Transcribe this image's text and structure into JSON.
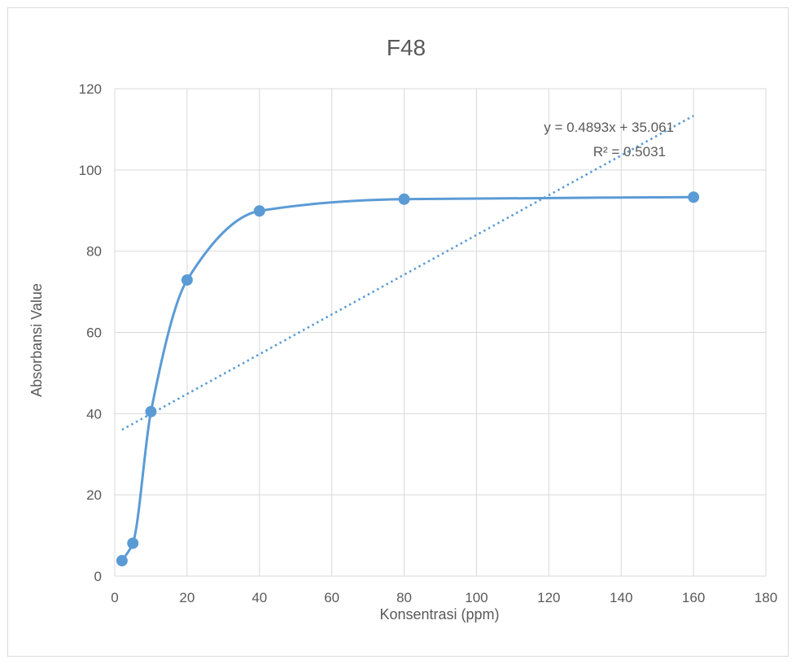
{
  "chart_data": {
    "type": "scatter",
    "title": "F48",
    "xlabel": "Konsentrasi (ppm)",
    "ylabel": "Absorbansi Value",
    "xlim": [
      0,
      180
    ],
    "ylim": [
      0,
      120
    ],
    "x_ticks": [
      "0",
      "20",
      "40",
      "60",
      "80",
      "100",
      "120",
      "140",
      "160",
      "180"
    ],
    "y_ticks": [
      "0",
      "20",
      "40",
      "60",
      "80",
      "100",
      "120"
    ],
    "grid": true,
    "series": [
      {
        "x": [
          2,
          5,
          10,
          20,
          40,
          80,
          160
        ],
        "y": [
          3.8,
          8.1,
          40.5,
          72.9,
          89.9,
          92.8,
          93.3
        ],
        "style": "markers-smooth-line",
        "color": "#5b9bd5"
      }
    ],
    "trendline": {
      "type": "linear",
      "slope": 0.4893,
      "intercept": 35.061,
      "x_range": [
        2,
        160
      ],
      "color": "#5b9bd5",
      "style": "dotted",
      "equation_label": "y = 0.4893x + 35.061",
      "r2_label": "R² = 0.5031"
    }
  }
}
